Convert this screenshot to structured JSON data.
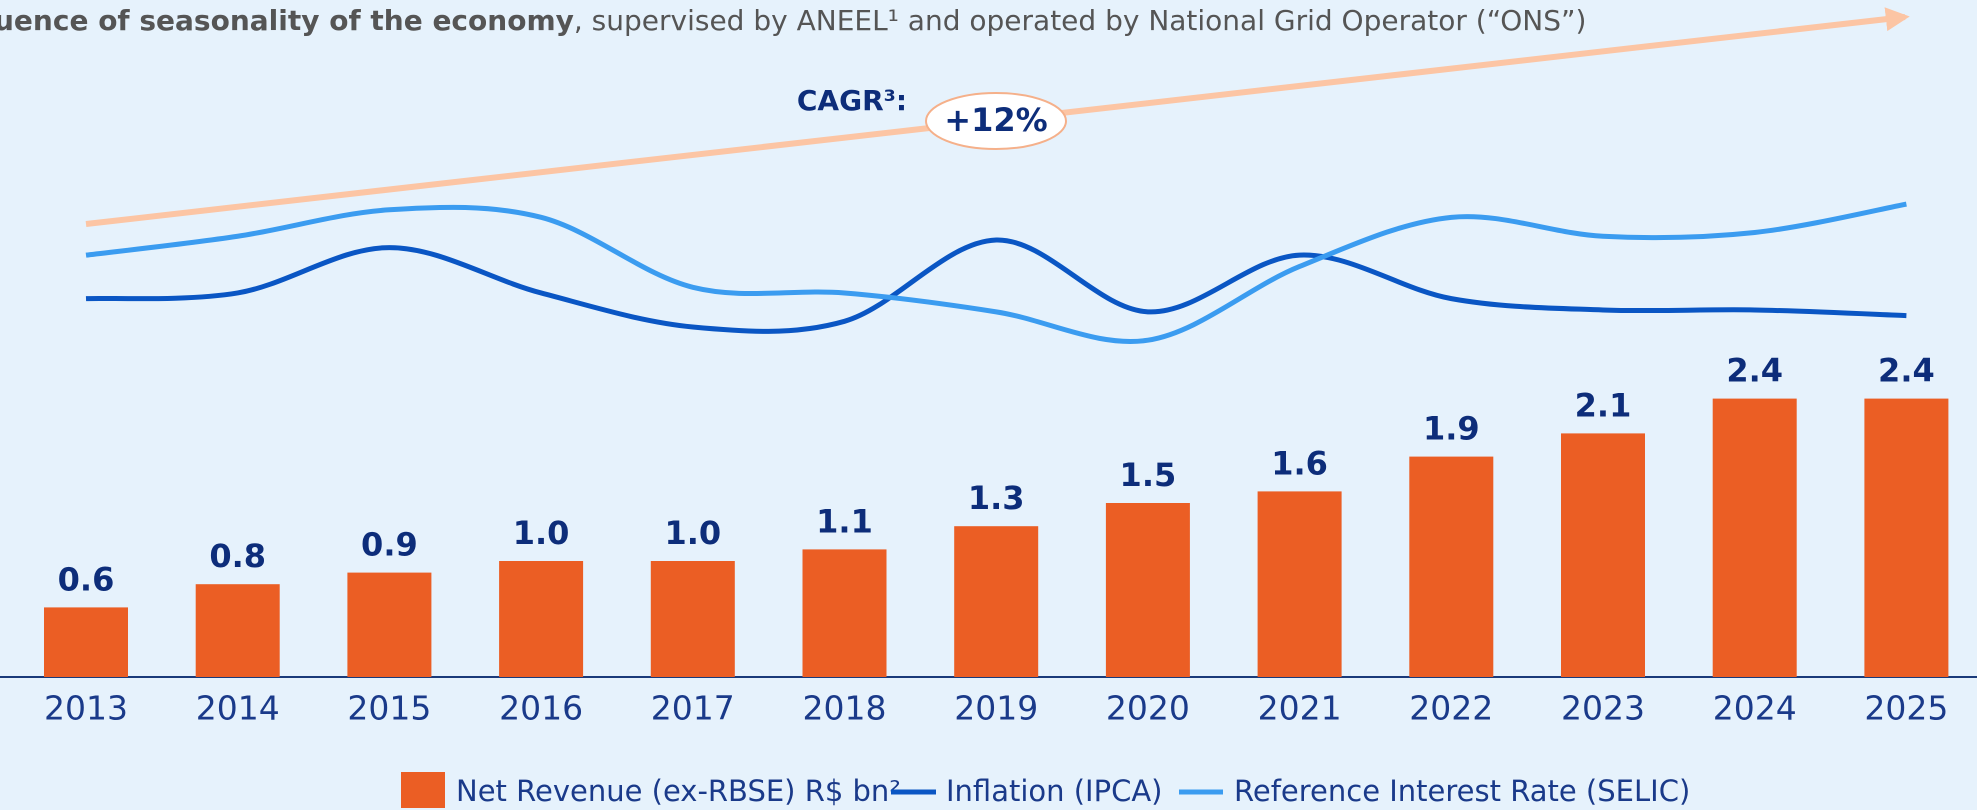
{
  "chart_data": {
    "type": "bar",
    "title": "uence of seasonality of the economy",
    "subtitle": ", supervised by ANEEL¹ and operated by National Grid Operator (“ONS”)",
    "annotations": [
      "CAGR³:",
      "+12%"
    ],
    "categories": [
      "2013",
      "2014",
      "2015",
      "2016",
      "2017",
      "2018",
      "2019",
      "2020",
      "2021",
      "2022",
      "2023",
      "2024",
      "2025"
    ],
    "ylim": [
      0,
      5
    ],
    "y2lim": [
      0,
      100
    ],
    "series": [
      {
        "name": "Net Revenue (ex-RBSE) R$ bn²",
        "color": "#eb5e24",
        "values": [
          0.6,
          0.8,
          0.9,
          1.0,
          1.0,
          1.1,
          1.3,
          1.5,
          1.6,
          1.9,
          2.1,
          2.4,
          2.4
        ],
        "value_labels": [
          "0.6",
          "0.8",
          "0.9",
          "1.0",
          "1.0",
          "1.1",
          "1.3",
          "1.5",
          "1.6",
          "1.9",
          "2.1",
          "2.4",
          "2.4"
        ]
      },
      {
        "name": "Inflation (IPCA)",
        "color": "#0a56c4",
        "axis": "y2",
        "values": [
          42,
          45,
          69,
          45,
          27,
          30,
          73,
          35,
          65,
          42,
          36,
          36,
          33
        ]
      },
      {
        "name": "Reference Interest Rate (SELIC)",
        "color": "#3b9cf0",
        "axis": "y2",
        "values": [
          65,
          75,
          89,
          85,
          48,
          45,
          35,
          20,
          59,
          85,
          75,
          77,
          92
        ]
      }
    ]
  }
}
